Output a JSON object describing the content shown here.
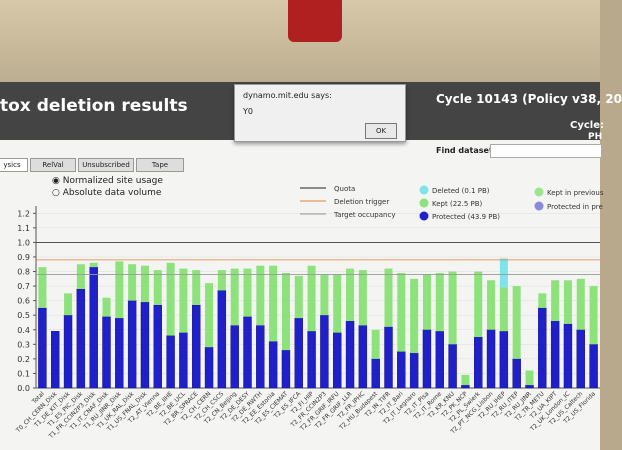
{
  "header": {
    "title": "tox deletion results",
    "cycle": "Cycle 10143 (Policy v38, 20",
    "cycle_right": "Cycle:",
    "ph": "PH"
  },
  "dialog": {
    "host": "dynamo.mit.edu says:",
    "message": "Y0",
    "button": "OK"
  },
  "find_label": "Find dataset:",
  "tabs": [
    "ysics",
    "RelVal",
    "Unsubscribed",
    "Tape"
  ],
  "radios": [
    "Normalized site usage",
    "Absolute data volume"
  ],
  "chart_data": {
    "type": "bar",
    "categories": [
      "Total",
      "T0_CH_CERN_Disk",
      "T1_DE_KIT_Disk",
      "T1_ES_PIC_Disk",
      "T1_FR_CCIN2P3_Disk",
      "T1_IT_CNAF_Disk",
      "T1_RU_JINR_Disk",
      "T1_UK_RAL_Disk",
      "T1_US_FNAL_Disk",
      "T2_AT_Vienna",
      "T2_BE_IIHE",
      "T2_BE_UCL",
      "T2_BR_SPRACE",
      "T2_CH_CERN",
      "T2_CH_CSCS",
      "T2_CN_Beijing",
      "T2_DE_DESY",
      "T2_DE_RWTH",
      "T2_EE_Estonia",
      "T2_ES_CIEMAT",
      "T2_ES_IFCA",
      "T2_FI_HIP",
      "T2_FR_CCIN2P3",
      "T2_FR_GRIF_IRFU",
      "T2_FR_GRIF_LLR",
      "T2_FR_IPHC",
      "T2_HU_Budapest",
      "T2_IN_TIFR",
      "T2_IT_Bari",
      "T2_IT_Legnaro",
      "T2_IT_Pisa",
      "T2_IT_Rome",
      "T2_KR_KNU",
      "T2_PK_NCP",
      "T2_PL_Swierk",
      "T2_PT_NCG_Lisbon",
      "T2_RU_IHEP",
      "T2_RU_ITEP",
      "T2_RU_JINR",
      "T2_TR_METU",
      "T2_UA_KIPT",
      "T2_UK_London_IC",
      "T2_US_Caltech",
      "T2_US_Florida"
    ],
    "series": [
      {
        "name": "Protected (43.9 PB)",
        "color": "#2020c8",
        "values": [
          0.55,
          0.39,
          0.5,
          0.68,
          0.83,
          0.49,
          0.48,
          0.6,
          0.59,
          0.57,
          0.36,
          0.38,
          0.57,
          0.28,
          0.67,
          0.43,
          0.49,
          0.43,
          0.32,
          0.26,
          0.48,
          0.39,
          0.5,
          0.38,
          0.46,
          0.43,
          0.2,
          0.42,
          0.25,
          0.24,
          0.4,
          0.39,
          0.3,
          0.02,
          0.35,
          0.4,
          0.39,
          0.2,
          0.02,
          0.55,
          0.46,
          0.44,
          0.4,
          0.3
        ]
      },
      {
        "name": "Kept (22.5 PB)",
        "color": "#8ee27c",
        "values": [
          0.28,
          0,
          0.15,
          0.17,
          0.03,
          0.13,
          0.39,
          0.25,
          0.25,
          0.24,
          0.5,
          0.44,
          0.24,
          0.44,
          0.14,
          0.39,
          0.33,
          0.41,
          0.52,
          0.53,
          0.29,
          0.45,
          0.28,
          0.4,
          0.36,
          0.38,
          0.2,
          0.4,
          0.54,
          0.51,
          0.38,
          0.4,
          0.5,
          0.07,
          0.45,
          0.34,
          0.3,
          0.5,
          0.1,
          0.1,
          0.28,
          0.3,
          0.35,
          0.4
        ]
      },
      {
        "name": "Deleted (0.1 PB)",
        "color": "#7fe3ea",
        "values": [
          0,
          0,
          0,
          0,
          0,
          0,
          0,
          0,
          0,
          0,
          0,
          0,
          0,
          0,
          0,
          0,
          0,
          0,
          0,
          0,
          0,
          0,
          0,
          0,
          0,
          0,
          0,
          0,
          0,
          0,
          0,
          0,
          0,
          0,
          0,
          0,
          0.2,
          0,
          0,
          0,
          0,
          0,
          0,
          0
        ]
      }
    ],
    "previous_legend": [
      {
        "name": "Kept in previous",
        "color": "#9ee48c"
      },
      {
        "name": "Protected in pre",
        "color": "#8a8ae0"
      }
    ],
    "lines": [
      {
        "name": "Quota",
        "color": "#222222",
        "value": 1.0
      },
      {
        "name": "Deletion trigger",
        "color": "#e08040",
        "value": 0.88
      },
      {
        "name": "Target occupancy",
        "color": "#999999",
        "value": 0.78
      }
    ],
    "ylim": [
      0,
      1.25
    ],
    "yticks": [
      {
        "value": 0,
        "label": "0.0"
      },
      0.1,
      0.2,
      0.3,
      0.4,
      0.5,
      0.6,
      0.7,
      0.8,
      0.9,
      {
        "value": 1,
        "label": "1.0"
      },
      1.1,
      1.2
    ],
    "grid": true
  }
}
